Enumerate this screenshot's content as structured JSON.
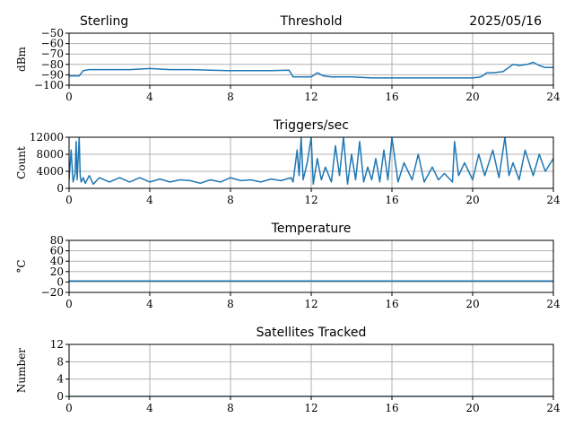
{
  "header": {
    "station": "Sterling",
    "date": "2025/05/16"
  },
  "colors": {
    "series": "#1f77b4",
    "grid": "#b0b0b0"
  },
  "chart_data": [
    {
      "type": "line",
      "title": "Threshold",
      "ylabel": "dBm",
      "xlim": [
        0,
        24
      ],
      "ylim": [
        -100,
        -50
      ],
      "x_ticks": [
        "0",
        "4",
        "8",
        "12",
        "16",
        "20",
        "24"
      ],
      "y_ticks": [
        "−50",
        "−60",
        "−70",
        "−80",
        "−90",
        "−100"
      ],
      "grid": true,
      "series": [
        {
          "x": [
            0,
            0.5,
            0.7,
            1,
            2,
            3,
            4,
            5,
            6,
            7,
            8,
            9,
            10,
            10.9,
            11.1,
            11.5,
            12,
            12.3,
            12.6,
            13,
            14,
            15,
            16,
            17,
            18,
            19,
            20,
            20.4,
            20.7,
            21,
            21.5,
            22,
            22.3,
            22.7,
            23,
            23.3,
            23.6,
            24
          ],
          "y": [
            -91,
            -91,
            -86,
            -85,
            -85,
            -85,
            -84,
            -85,
            -85,
            -85.5,
            -86,
            -86,
            -86,
            -85.5,
            -92,
            -92,
            -92,
            -88,
            -91,
            -92,
            -92,
            -93,
            -93,
            -93,
            -93,
            -93,
            -93,
            -92,
            -88,
            -88,
            -87,
            -80,
            -81,
            -80,
            -78,
            -81,
            -83,
            -83
          ]
        }
      ]
    },
    {
      "type": "line",
      "title": "Triggers/sec",
      "ylabel": "Count",
      "xlim": [
        0,
        24
      ],
      "ylim": [
        0,
        12000
      ],
      "x_ticks": [
        "0",
        "4",
        "8",
        "12",
        "16",
        "20",
        "24"
      ],
      "y_ticks": [
        "12000",
        "8000",
        "4000",
        "0"
      ],
      "grid": true,
      "series": [
        {
          "x": [
            0,
            0.1,
            0.2,
            0.3,
            0.35,
            0.4,
            0.5,
            0.55,
            0.6,
            0.7,
            0.8,
            1,
            1.2,
            1.5,
            2,
            2.5,
            3,
            3.5,
            4,
            4.5,
            5,
            5.5,
            6,
            6.5,
            7,
            7.5,
            8,
            8.5,
            9,
            9.5,
            10,
            10.5,
            11,
            11.1,
            11.3,
            11.4,
            11.5,
            11.6,
            11.8,
            12,
            12.1,
            12.3,
            12.5,
            12.7,
            13,
            13.2,
            13.4,
            13.6,
            13.8,
            14,
            14.2,
            14.4,
            14.6,
            14.8,
            15,
            15.2,
            15.4,
            15.6,
            15.8,
            16,
            16.3,
            16.6,
            17,
            17.3,
            17.6,
            18,
            18.3,
            18.6,
            19,
            19.1,
            19.3,
            19.6,
            20,
            20.3,
            20.6,
            21,
            21.3,
            21.6,
            21.8,
            22,
            22.3,
            22.6,
            23,
            23.3,
            23.6,
            24
          ],
          "y": [
            2000,
            9000,
            1500,
            3500,
            11000,
            2000,
            12000,
            3000,
            1500,
            2500,
            1200,
            3000,
            1000,
            2500,
            1500,
            2500,
            1500,
            2500,
            1500,
            2200,
            1500,
            2000,
            1800,
            1200,
            2000,
            1500,
            2500,
            1800,
            2000,
            1500,
            2200,
            1800,
            2500,
            1500,
            9000,
            3000,
            12000,
            2000,
            6000,
            12000,
            1000,
            7000,
            2000,
            5000,
            1500,
            10000,
            3000,
            12000,
            1000,
            8000,
            2000,
            11000,
            1500,
            5000,
            2000,
            7000,
            1500,
            9000,
            2000,
            12000,
            1500,
            6000,
            2000,
            8000,
            1500,
            5000,
            2000,
            3500,
            1500,
            11000,
            3000,
            6000,
            2000,
            8000,
            3000,
            9000,
            2500,
            12000,
            3000,
            6000,
            2000,
            9000,
            3000,
            8000,
            4000,
            7000
          ]
        }
      ]
    },
    {
      "type": "line",
      "title": "Temperature",
      "ylabel": "°C",
      "xlim": [
        0,
        24
      ],
      "ylim": [
        -20,
        80
      ],
      "x_ticks": [
        "0",
        "4",
        "8",
        "12",
        "16",
        "20",
        "24"
      ],
      "y_ticks": [
        "80",
        "60",
        "40",
        "20",
        "0",
        "−20"
      ],
      "grid": true,
      "series": [
        {
          "x": [
            0,
            24
          ],
          "y": [
            2,
            2
          ]
        }
      ]
    },
    {
      "type": "line",
      "title": "Satellites Tracked",
      "ylabel": "Number",
      "xlim": [
        0,
        24
      ],
      "ylim": [
        0,
        12
      ],
      "x_ticks": [
        "0",
        "4",
        "8",
        "12",
        "16",
        "20",
        "24"
      ],
      "y_ticks": [
        "12",
        "8",
        "4",
        "0"
      ],
      "grid": true,
      "series": [
        {
          "x": [
            0,
            24
          ],
          "y": [
            0,
            0
          ]
        }
      ]
    }
  ]
}
